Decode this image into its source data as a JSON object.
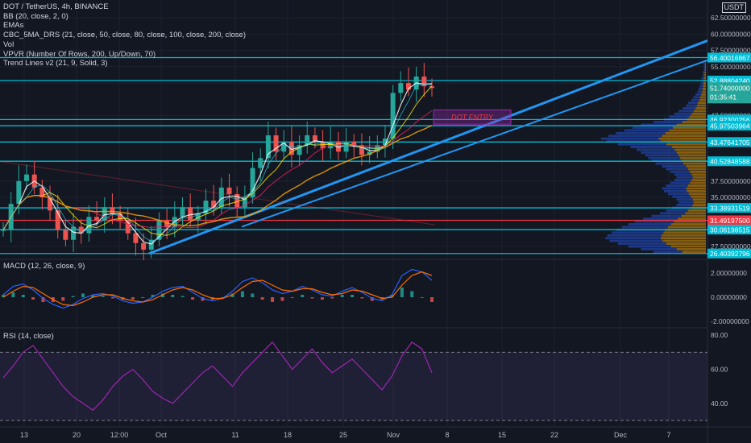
{
  "header": {
    "symbol_line": "DOT / TetherUS, 4h, BINANCE",
    "currency": "USDT",
    "indicators": [
      "BB (20, close, 2, 0)",
      "EMAs",
      "CBC_5MA_DRS (21, close, 50, close, 80, close, 100, close, 200, close)",
      "Vol",
      "VPVR (Number Of Rows, 200, Up/Down, 70)",
      "Trend Lines v2 (21, 9, Solid, 3)"
    ]
  },
  "annotation": {
    "text": "DOT ENTRY",
    "color": "#f23645"
  },
  "chart_data": [
    {
      "type": "candlestick",
      "name": "main",
      "y_ticks": [
        "62.50000000",
        "60.00000000",
        "57.50000000",
        "55.00000000",
        "52.50000000",
        "47.50000000",
        "37.50000000",
        "35.00000000",
        "27.50000000"
      ],
      "x_ticks": [
        "13",
        "20",
        "12:00",
        "Oct",
        "11",
        "18",
        "25",
        "Nov",
        "8",
        "15",
        "22",
        "Dec",
        "7"
      ],
      "ylim": [
        26.0,
        63.0
      ],
      "levels": [
        {
          "value": 56.40016867,
          "label": "56.40016867",
          "color": "#00bcd4"
        },
        {
          "value": 52.8880424,
          "label": "52.88804240",
          "color": "#00bcd4"
        },
        {
          "value": 46.92300256,
          "label": "46.92300256",
          "color": "#00bcd4"
        },
        {
          "value": 45.97503964,
          "label": "45.97503964",
          "color": "#00bcd4"
        },
        {
          "value": 43.47641705,
          "label": "43.47641705",
          "color": "#00bcd4"
        },
        {
          "value": 40.52848588,
          "label": "40.52848588",
          "color": "#00bcd4"
        },
        {
          "value": 33.38931519,
          "label": "33.38931519",
          "color": "#00bcd4"
        },
        {
          "value": 31.491975,
          "label": "31.49197500",
          "color": "#f23645"
        },
        {
          "value": 30.06198515,
          "label": "30.06198515",
          "color": "#00bcd4"
        },
        {
          "value": 26.40392796,
          "label": "26.40392796",
          "color": "#00bcd4"
        }
      ],
      "last_price": {
        "value": 51.74,
        "label": "51.74000000",
        "countdown": "01:35:41",
        "color": "#26a69a"
      },
      "close_series": [
        30.0,
        34.0,
        37.5,
        38.5,
        36.5,
        35.0,
        33.0,
        30.0,
        28.5,
        30.5,
        29.5,
        32.0,
        31.5,
        33.5,
        32.5,
        31.5,
        29.5,
        28.0,
        27.0,
        28.5,
        31.5,
        30.5,
        32.0,
        33.5,
        31.5,
        32.5,
        34.5,
        33.5,
        36.5,
        35.5,
        33.5,
        35.0,
        39.5,
        41.0,
        44.5,
        42.0,
        43.5,
        41.5,
        43.0,
        44.5,
        43.5,
        42.5,
        43.5,
        42.0,
        43.5,
        43.0,
        41.5,
        42.0,
        43.0,
        44.0,
        51.0,
        52.5,
        51.5,
        53.5,
        52.0,
        51.74
      ],
      "volume_profile": [
        0.02,
        0.02,
        0.02,
        0.02,
        0.03,
        0.03,
        0.04,
        0.04,
        0.05,
        0.06,
        0.07,
        0.08,
        0.1,
        0.12,
        0.14,
        0.17,
        0.19,
        0.22,
        0.26,
        0.3,
        0.35,
        0.4,
        0.5,
        0.62,
        0.7,
        0.78,
        0.86,
        0.93,
        1.0,
        0.95,
        0.84,
        0.72,
        0.66,
        0.62,
        0.58,
        0.55,
        0.52,
        0.48,
        0.42,
        0.38,
        0.34,
        0.3,
        0.28,
        0.3,
        0.34,
        0.38,
        0.42,
        0.4,
        0.36,
        0.32,
        0.28,
        0.26,
        0.28,
        0.32,
        0.38,
        0.44,
        0.52,
        0.6,
        0.68,
        0.74,
        0.8,
        0.86,
        0.9,
        0.94,
        0.96,
        0.92,
        0.84,
        0.74,
        0.62,
        0.5
      ]
    },
    {
      "type": "line",
      "name": "MACD (12, 26, close, 9)",
      "y_ticks": [
        "2.00000000",
        "0.00000000",
        "-2.00000000"
      ],
      "ylim": [
        -2.2,
        2.6
      ],
      "series": [
        {
          "color": "#2962ff",
          "values": [
            0.2,
            0.9,
            1.1,
            0.6,
            -0.1,
            -0.6,
            -0.9,
            -0.6,
            -0.1,
            0.2,
            0.3,
            0.1,
            -0.3,
            -0.5,
            -0.4,
            0.0,
            0.5,
            0.8,
            0.9,
            0.4,
            -0.1,
            -0.3,
            -0.1,
            0.5,
            1.3,
            1.6,
            1.2,
            0.6,
            0.3,
            0.5,
            0.9,
            0.6,
            0.2,
            0.1,
            0.5,
            0.8,
            0.4,
            -0.1,
            -0.3,
            0.2,
            1.8,
            2.3,
            2.1,
            1.4
          ]
        },
        {
          "color": "#ff6d00",
          "values": [
            0.0,
            0.5,
            0.9,
            0.8,
            0.3,
            -0.2,
            -0.6,
            -0.7,
            -0.4,
            0.0,
            0.2,
            0.2,
            -0.1,
            -0.3,
            -0.4,
            -0.2,
            0.2,
            0.6,
            0.8,
            0.6,
            0.2,
            -0.1,
            -0.1,
            0.2,
            0.8,
            1.3,
            1.4,
            1.0,
            0.6,
            0.5,
            0.7,
            0.7,
            0.4,
            0.2,
            0.3,
            0.6,
            0.5,
            0.2,
            -0.1,
            0.0,
            1.0,
            1.8,
            2.1,
            1.8
          ]
        }
      ]
    },
    {
      "type": "line",
      "name": "RSI (14, close)",
      "y_ticks": [
        "80.00",
        "60.00",
        "40.00"
      ],
      "ylim": [
        30,
        82
      ],
      "bands": [
        70,
        30
      ],
      "series": [
        {
          "color": "#9c27b0",
          "values": [
            55,
            62,
            70,
            74,
            66,
            58,
            50,
            44,
            40,
            36,
            42,
            50,
            56,
            60,
            54,
            47,
            43,
            40,
            46,
            52,
            58,
            62,
            56,
            50,
            58,
            64,
            70,
            76,
            68,
            60,
            66,
            72,
            64,
            58,
            62,
            66,
            60,
            54,
            48,
            56,
            68,
            76,
            72,
            58
          ]
        }
      ]
    }
  ]
}
